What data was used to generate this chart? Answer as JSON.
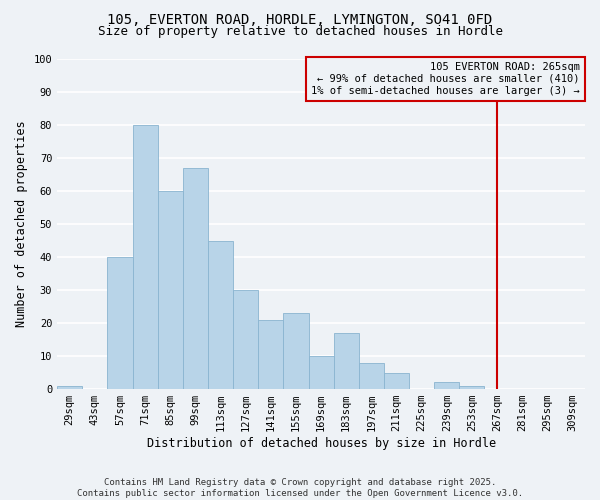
{
  "title_line1": "105, EVERTON ROAD, HORDLE, LYMINGTON, SO41 0FD",
  "title_line2": "Size of property relative to detached houses in Hordle",
  "xlabel": "Distribution of detached houses by size in Hordle",
  "ylabel": "Number of detached properties",
  "footer_line1": "Contains HM Land Registry data © Crown copyright and database right 2025.",
  "footer_line2": "Contains public sector information licensed under the Open Government Licence v3.0.",
  "bar_labels": [
    "29sqm",
    "43sqm",
    "57sqm",
    "71sqm",
    "85sqm",
    "99sqm",
    "113sqm",
    "127sqm",
    "141sqm",
    "155sqm",
    "169sqm",
    "183sqm",
    "197sqm",
    "211sqm",
    "225sqm",
    "239sqm",
    "253sqm",
    "267sqm",
    "281sqm",
    "295sqm",
    "309sqm"
  ],
  "bar_values": [
    1,
    0,
    40,
    80,
    60,
    67,
    45,
    30,
    21,
    23,
    10,
    17,
    8,
    5,
    0,
    2,
    1,
    0,
    0,
    0,
    0
  ],
  "bar_color": "#b8d4e8",
  "bar_edge_color": "#8ab4d0",
  "ylim": [
    0,
    100
  ],
  "yticks": [
    0,
    10,
    20,
    30,
    40,
    50,
    60,
    70,
    80,
    90,
    100
  ],
  "vline_x": 17,
  "vline_color": "#cc0000",
  "annotation_title": "105 EVERTON ROAD: 265sqm",
  "annotation_line1": "← 99% of detached houses are smaller (410)",
  "annotation_line2": "1% of semi-detached houses are larger (3) →",
  "annotation_box_color": "#cc0000",
  "background_color": "#eef2f6",
  "grid_color": "#ffffff",
  "title_fontsize": 10,
  "subtitle_fontsize": 9,
  "axis_label_fontsize": 8.5,
  "tick_label_fontsize": 7.5,
  "annotation_fontsize": 7.5,
  "footer_fontsize": 6.5
}
